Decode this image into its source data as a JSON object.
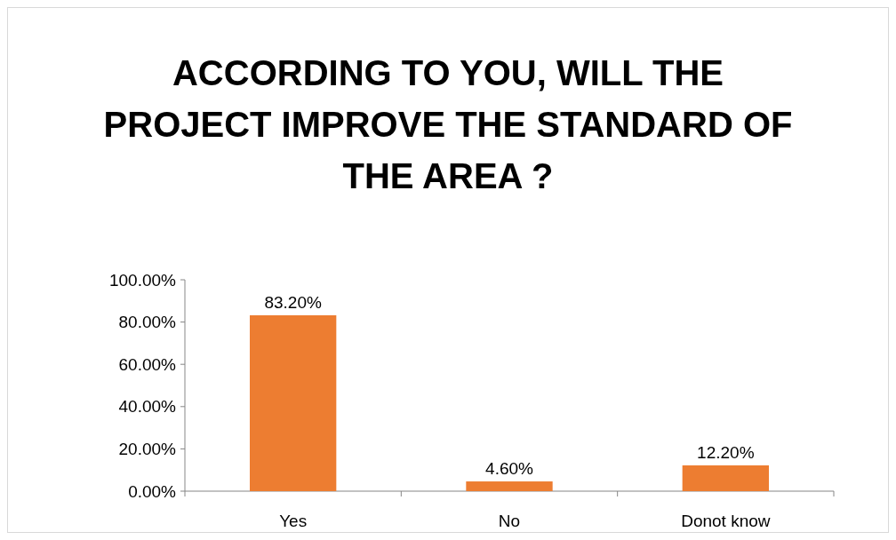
{
  "chart_data": {
    "type": "bar",
    "title": "ACCORDING TO YOU, WILL THE\nPROJECT IMPROVE THE STANDARD OF\nTHE AREA ?",
    "categories": [
      "Yes",
      "No",
      "Donot know"
    ],
    "values": [
      83.2,
      4.6,
      12.2
    ],
    "value_labels": [
      "83.20%",
      "4.60%",
      "12.20%"
    ],
    "color": "#ed7d31",
    "ylim": [
      0,
      100
    ],
    "yticks": [
      {
        "value": 0,
        "label": "0.00%"
      },
      {
        "value": 20,
        "label": "20.00%"
      },
      {
        "value": 40,
        "label": "40.00%"
      },
      {
        "value": 60,
        "label": "60.00%"
      },
      {
        "value": 80,
        "label": "80.00%"
      },
      {
        "value": 100,
        "label": "100.00%"
      }
    ],
    "grid": false
  }
}
